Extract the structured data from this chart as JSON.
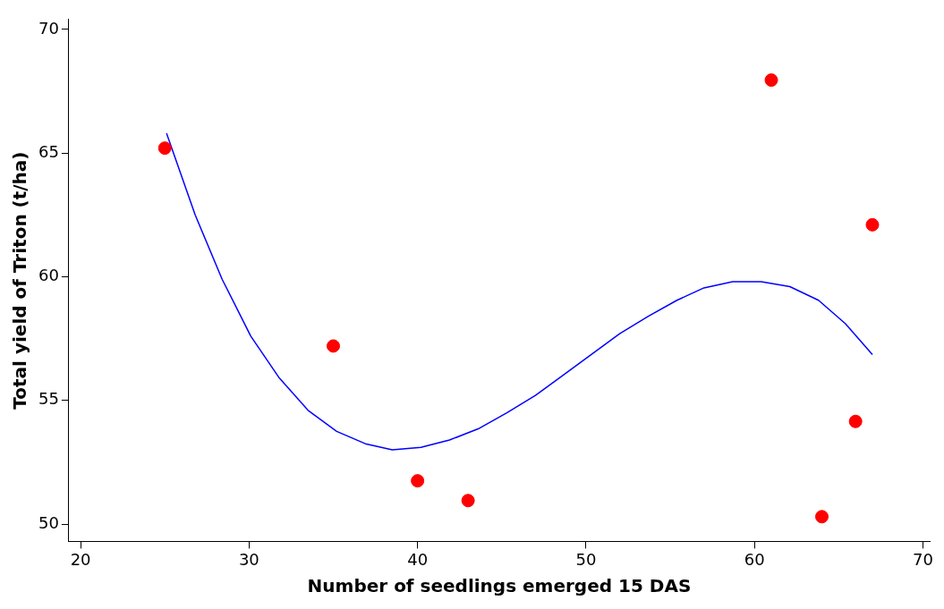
{
  "chart_data": {
    "type": "scatter",
    "xlabel": "Number of seedlings emerged 15 DAS",
    "ylabel": "Total yield of Triton (t/ha)",
    "xlim": [
      19.3,
      70.4
    ],
    "ylim": [
      49.3,
      70.4
    ],
    "xticks": [
      20,
      30,
      40,
      50,
      60,
      70
    ],
    "yticks": [
      50,
      55,
      60,
      65,
      70
    ],
    "grid": false,
    "legend": false,
    "series": [
      {
        "type": "scatter",
        "color": "#ff0000",
        "marker": "circle",
        "x": [
          25,
          35,
          40,
          43,
          61,
          64,
          66,
          67
        ],
        "values": [
          65.2,
          57.2,
          51.75,
          50.95,
          67.95,
          50.3,
          54.15,
          62.1
        ]
      },
      {
        "type": "line",
        "color": "#0000ff",
        "marker": "none",
        "x": [
          25.1,
          26.8,
          28.4,
          30.1,
          31.8,
          33.5,
          35.2,
          36.9,
          38.5,
          40.2,
          41.9,
          43.6,
          45.3,
          47,
          48.6,
          50.3,
          52,
          53.7,
          55.4,
          57,
          58.7,
          60.4,
          62.1,
          63.8,
          65.4,
          67
        ],
        "values": [
          65.8,
          62.5,
          59.9,
          57.6,
          55.9,
          54.6,
          53.75,
          53.25,
          53.0,
          53.1,
          53.4,
          53.85,
          54.5,
          55.2,
          56.0,
          56.85,
          57.7,
          58.4,
          59.05,
          59.55,
          59.8,
          59.8,
          59.6,
          59.05,
          58.1,
          56.85
        ]
      }
    ]
  }
}
